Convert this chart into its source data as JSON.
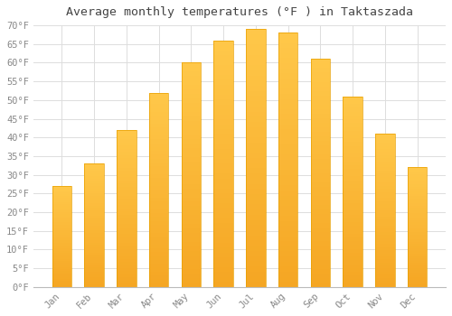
{
  "months": [
    "Jan",
    "Feb",
    "Mar",
    "Apr",
    "May",
    "Jun",
    "Jul",
    "Aug",
    "Sep",
    "Oct",
    "Nov",
    "Dec"
  ],
  "values": [
    27,
    33,
    42,
    52,
    60,
    66,
    69,
    68,
    61,
    51,
    41,
    32
  ],
  "bar_color_top": "#FFC84A",
  "bar_color_bottom": "#F5A623",
  "bar_edge_color": "#E8A000",
  "title": "Average monthly temperatures (°F ) in Taktaszada",
  "title_fontsize": 9.5,
  "ylim": [
    0,
    70
  ],
  "ytick_step": 5,
  "background_color": "#FFFFFF",
  "plot_bg_color": "#FFFFFF",
  "grid_color": "#DDDDDD",
  "tick_label_color": "#888888",
  "title_color": "#444444",
  "bar_width": 0.6
}
